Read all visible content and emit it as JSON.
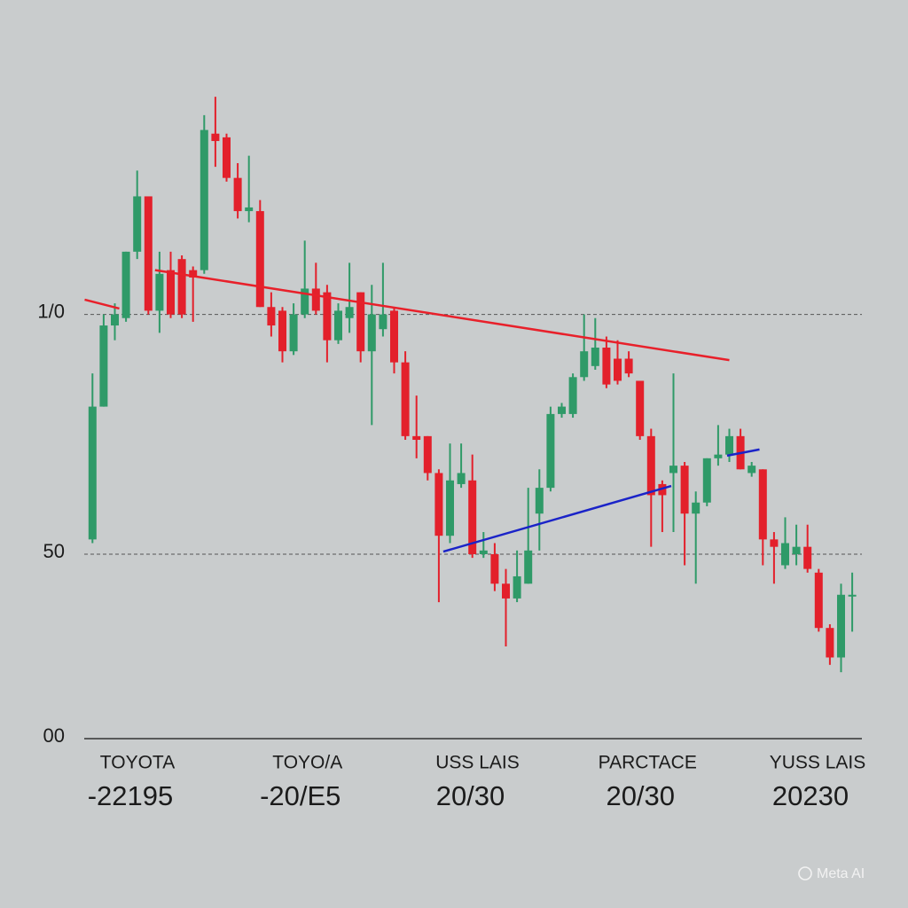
{
  "chart_data": {
    "type": "candlestick",
    "open": [
      54,
      90,
      112,
      114,
      132,
      147,
      116,
      127,
      130,
      127,
      127,
      164,
      163,
      152,
      143,
      143,
      117,
      116,
      105,
      115,
      122,
      121,
      108,
      114,
      121,
      105,
      111,
      116,
      102,
      82,
      82,
      72,
      55,
      69,
      70,
      50,
      50,
      42,
      38,
      42,
      61,
      68,
      88,
      88,
      98,
      101,
      106,
      103,
      103,
      97,
      82,
      69,
      72,
      74,
      61,
      64,
      76,
      77,
      82,
      72,
      73,
      54,
      47,
      50,
      52,
      45,
      30,
      22,
      39
    ],
    "high": [
      99,
      115,
      118,
      132,
      154,
      147,
      132,
      132,
      131,
      128,
      169,
      174,
      164,
      156,
      158,
      146,
      121,
      117,
      118,
      135,
      129,
      123,
      118,
      129,
      121,
      123,
      129,
      117,
      105,
      93,
      82,
      73,
      80,
      80,
      77,
      56,
      53,
      46,
      51,
      68,
      73,
      90,
      91,
      99,
      115,
      114,
      109,
      108,
      105,
      97,
      84,
      70,
      99,
      75,
      67,
      76,
      85,
      84,
      84,
      75,
      73,
      56,
      60,
      58,
      58,
      46,
      31,
      42,
      45
    ],
    "low": [
      53,
      90,
      108,
      113,
      130,
      115,
      110,
      114,
      114,
      113,
      126,
      155,
      151,
      141,
      140,
      117,
      109,
      102,
      104,
      114,
      115,
      102,
      107,
      110,
      102,
      85,
      109,
      99,
      81,
      76,
      70,
      37,
      53,
      68,
      49,
      49,
      40,
      25,
      37,
      42,
      51,
      67,
      87,
      87,
      97,
      100,
      95,
      96,
      98,
      81,
      52,
      56,
      56,
      47,
      42,
      63,
      74,
      75,
      73,
      71,
      47,
      42,
      46,
      47,
      45,
      29,
      20,
      18,
      29
    ],
    "close": [
      90,
      112,
      115,
      132,
      147,
      116,
      126,
      115,
      115,
      125,
      165,
      162,
      152,
      143,
      144,
      117,
      112,
      105,
      115,
      122,
      116,
      108,
      116,
      117,
      105,
      115,
      115,
      102,
      82,
      81,
      72,
      55,
      70,
      72,
      50,
      51,
      42,
      38,
      44,
      51,
      68,
      88,
      90,
      98,
      105,
      106,
      96,
      97,
      99,
      82,
      66,
      66,
      74,
      61,
      64,
      76,
      77,
      82,
      73,
      74,
      54,
      52,
      53,
      52,
      46,
      30,
      22,
      39,
      39
    ],
    "up_color": "#2f9a68",
    "down_color": "#e3202b",
    "ylim": [
      0,
      181
    ],
    "yticks": [
      {
        "value": 0,
        "label": "00"
      },
      50,
      {
        "value": 115,
        "label": "1/0"
      }
    ],
    "x_labels": [
      {
        "name": "TOYOTA",
        "date": "-22195"
      },
      {
        "name": "TOYO/A",
        "date": "-20/E5"
      },
      {
        "name": "USS LAIS",
        "date": "20/30"
      },
      {
        "name": "PARCTACE",
        "date": "20/30"
      },
      {
        "name": "YUSS LAIS",
        "date": "20230"
      }
    ],
    "trend_lines": [
      {
        "color": "#e8202a",
        "x": [
          -0.7,
          2.4
        ],
        "values": [
          119,
          116.6
        ]
      },
      {
        "color": "#e8202a",
        "x": [
          5.6,
          57
        ],
        "values": [
          127,
          102.6
        ]
      },
      {
        "color": "#1a23c8",
        "x": [
          31.4,
          51.8
        ],
        "values": [
          50.7,
          68.5
        ]
      },
      {
        "color": "#1a23c8",
        "x": [
          56.8,
          59.7
        ],
        "values": [
          76.7,
          78.4
        ]
      }
    ],
    "watermark": "Meta AI"
  }
}
